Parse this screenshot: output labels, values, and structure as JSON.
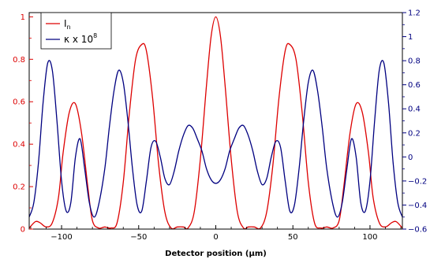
{
  "chart_data": {
    "type": "line",
    "xlabel": "Detector position (µm)",
    "xlim": [
      -121,
      121
    ],
    "x_ticks": [
      -100,
      -50,
      0,
      50,
      100
    ],
    "x_tick_labels": [
      "−100",
      "−50",
      "0",
      "50",
      "100"
    ],
    "left_axis": {
      "ylim": [
        0,
        1.02
      ],
      "ticks": [
        0,
        0.2,
        0.4,
        0.6,
        0.8,
        1
      ],
      "tick_labels": [
        "0",
        "0.2",
        "0.4",
        "0.6",
        "0.8",
        "1"
      ],
      "color": "#dd0000"
    },
    "right_axis": {
      "ylim": [
        -0.6,
        1.2
      ],
      "ticks": [
        -0.6,
        -0.4,
        -0.2,
        0,
        0.2,
        0.4,
        0.6,
        0.8,
        1,
        1.2
      ],
      "tick_labels": [
        "−0.6",
        "−0.4",
        "−0.2",
        "0",
        "0.2",
        "0.4",
        "0.6",
        "0.8",
        "1",
        "1.2"
      ],
      "color": "#000080"
    },
    "legend_position": "top-left",
    "series": [
      {
        "name": "I",
        "name_subscript": "n",
        "axis": "left",
        "color": "#dd0000",
        "x": [
          -121,
          -117,
          -114,
          -110,
          -106,
          -102,
          -99,
          -95,
          -91,
          -87,
          -83,
          -80,
          -76,
          -72,
          -68,
          -64,
          -60,
          -56,
          -52,
          -48,
          -45,
          -41,
          -37,
          -33,
          -29,
          -25,
          -21,
          -18,
          -14,
          -10,
          -6,
          -3,
          0,
          3,
          6,
          10,
          14,
          18,
          21,
          25,
          29,
          33,
          37,
          41,
          45,
          48,
          52,
          56,
          60,
          64,
          68,
          72,
          76,
          80,
          83,
          87,
          91,
          95,
          99,
          102,
          106,
          110,
          114,
          117,
          121
        ],
        "y": [
          0.005,
          0.035,
          0.03,
          0.01,
          0.03,
          0.15,
          0.36,
          0.55,
          0.59,
          0.45,
          0.2,
          0.04,
          0.005,
          0.01,
          0.005,
          0.03,
          0.22,
          0.55,
          0.8,
          0.87,
          0.84,
          0.62,
          0.3,
          0.08,
          0.005,
          0.01,
          0.01,
          0.005,
          0.08,
          0.33,
          0.68,
          0.91,
          1.0,
          0.91,
          0.68,
          0.33,
          0.08,
          0.005,
          0.01,
          0.01,
          0.005,
          0.08,
          0.3,
          0.62,
          0.84,
          0.87,
          0.8,
          0.55,
          0.22,
          0.03,
          0.005,
          0.01,
          0.005,
          0.04,
          0.2,
          0.45,
          0.59,
          0.55,
          0.36,
          0.15,
          0.03,
          0.01,
          0.03,
          0.035,
          0.005
        ]
      },
      {
        "name": "κ x 10",
        "name_superscript": "8",
        "axis": "right",
        "color": "#000080",
        "x": [
          -121,
          -118,
          -115,
          -112,
          -109,
          -106,
          -103,
          -100,
          -97,
          -94,
          -91,
          -88,
          -85,
          -82,
          -79,
          -76,
          -72,
          -69,
          -66,
          -63,
          -60,
          -57,
          -54,
          -51,
          -48,
          -45,
          -42,
          -39,
          -36,
          -33,
          -30,
          -27,
          -24,
          -21,
          -18,
          -15,
          -12,
          -9,
          -6,
          -3,
          0,
          3,
          6,
          9,
          12,
          15,
          18,
          21,
          24,
          27,
          30,
          33,
          36,
          39,
          42,
          45,
          48,
          51,
          54,
          57,
          60,
          63,
          66,
          69,
          72,
          76,
          79,
          82,
          85,
          88,
          91,
          94,
          97,
          100,
          103,
          106,
          109,
          112,
          115,
          118,
          121
        ],
        "y": [
          -0.5,
          -0.38,
          -0.05,
          0.45,
          0.78,
          0.72,
          0.3,
          -0.2,
          -0.45,
          -0.38,
          0.0,
          0.15,
          -0.1,
          -0.38,
          -0.5,
          -0.4,
          -0.1,
          0.25,
          0.55,
          0.72,
          0.62,
          0.3,
          -0.1,
          -0.4,
          -0.45,
          -0.2,
          0.08,
          0.13,
          0.0,
          -0.18,
          -0.23,
          -0.12,
          0.05,
          0.18,
          0.26,
          0.24,
          0.15,
          0.05,
          -0.1,
          -0.19,
          -0.22,
          -0.19,
          -0.1,
          0.05,
          0.15,
          0.24,
          0.26,
          0.18,
          0.05,
          -0.12,
          -0.23,
          -0.18,
          0.0,
          0.13,
          0.08,
          -0.2,
          -0.45,
          -0.4,
          -0.1,
          0.3,
          0.62,
          0.72,
          0.55,
          0.25,
          -0.1,
          -0.4,
          -0.5,
          -0.38,
          -0.1,
          0.15,
          0.0,
          -0.38,
          -0.45,
          -0.2,
          0.3,
          0.72,
          0.78,
          0.45,
          -0.05,
          -0.38,
          -0.5
        ]
      }
    ]
  }
}
